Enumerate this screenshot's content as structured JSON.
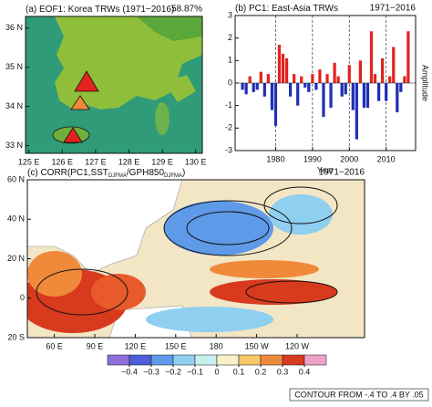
{
  "chart_data": [
    {
      "type": "map",
      "title": [
        "(a) EOF1: Korea TRWs (1971−2016)"
      ],
      "annotation": "58.87%",
      "xlim": [
        124.9,
        130.2
      ],
      "ylim": [
        32.8,
        36.3
      ],
      "xticks": [
        {
          "value": 125,
          "label": "125 E"
        },
        {
          "value": 126,
          "label": "126 E"
        },
        {
          "value": 127,
          "label": "127 E"
        },
        {
          "value": 128,
          "label": "128 E"
        },
        {
          "value": 129,
          "label": "129 E"
        },
        {
          "value": 130,
          "label": "130 E"
        }
      ],
      "yticks": [
        {
          "value": 33,
          "label": "33 N"
        },
        {
          "value": 34,
          "label": "34 N"
        },
        {
          "value": 35,
          "label": "35 N"
        },
        {
          "value": 36,
          "label": "36 N"
        }
      ]
    },
    {
      "type": "bar",
      "title": [
        "(b) PC1: East-Asia TRWs"
      ],
      "annotation": "1971−2016",
      "xlabel": "Year",
      "ylabel": "Amplitude",
      "x": [
        1971,
        1972,
        1973,
        1974,
        1975,
        1976,
        1977,
        1978,
        1979,
        1980,
        1981,
        1982,
        1983,
        1984,
        1985,
        1986,
        1987,
        1988,
        1989,
        1990,
        1991,
        1992,
        1993,
        1994,
        1995,
        1996,
        1997,
        1998,
        1999,
        2000,
        2001,
        2002,
        2003,
        2004,
        2005,
        2006,
        2007,
        2008,
        2009,
        2010,
        2011,
        2012,
        2013,
        2014,
        2015,
        2016
      ],
      "values": [
        -0.3,
        -0.5,
        0.3,
        -0.4,
        -0.3,
        0.5,
        -0.6,
        0.4,
        -1.2,
        -1.9,
        1.7,
        1.3,
        1.1,
        -0.6,
        0.4,
        -1.0,
        0.3,
        -0.2,
        -0.4,
        0.4,
        -0.3,
        0.6,
        -1.5,
        0.4,
        -1.1,
        0.9,
        0.3,
        -0.6,
        -0.5,
        0.8,
        -1.2,
        -2.5,
        1.0,
        -1.1,
        -1.1,
        2.3,
        0.4,
        -0.8,
        1.1,
        -0.8,
        0.3,
        1.6,
        -1.3,
        -0.4,
        0.3,
        2.3
      ],
      "positive_color": "#e3231e",
      "negative_color": "#1f2fb5",
      "xlim": [
        1969,
        2018
      ],
      "ylim": [
        -3,
        3
      ],
      "xticks": [
        1980,
        1990,
        2000,
        2010
      ],
      "yticks": [
        -3,
        -2,
        -1,
        0,
        1,
        2,
        3
      ],
      "grid": true
    },
    {
      "type": "map",
      "title": [
        "(c) CORR(PC1,SST",
        "DJFMA",
        "/GPH850",
        "DJFMA",
        ")"
      ],
      "annotation": "1971−2016",
      "xlim": [
        40,
        290
      ],
      "ylim": [
        -20,
        60
      ],
      "xticks": [
        {
          "value": 60,
          "label": "60 E"
        },
        {
          "value": 90,
          "label": "90 E"
        },
        {
          "value": 120,
          "label": "120 E"
        },
        {
          "value": 150,
          "label": "150 E"
        },
        180,
        {
          "value": 210,
          "label": "150 W"
        },
        {
          "value": 240,
          "label": "120 W"
        }
      ],
      "yticks": [
        {
          "value": -20,
          "label": "20 S"
        },
        0,
        {
          "value": 20,
          "label": "20 N"
        },
        {
          "value": 40,
          "label": "40 N"
        },
        {
          "value": 60,
          "label": "60 N"
        }
      ],
      "colorbar": {
        "colors": [
          "#8d6fd6",
          "#4c5fd8",
          "#5f9ae8",
          "#8fcff0",
          "#c6f0ee",
          "#f7f1c7",
          "#f7c86a",
          "#f08a3a",
          "#d83a1e",
          "#f0a0c8"
        ],
        "ticks": [
          {
            "value": -0.4,
            "label": "−0.4"
          },
          {
            "value": -0.3,
            "label": "−0.3"
          },
          {
            "value": -0.2,
            "label": "−0.2"
          },
          {
            "value": -0.1,
            "label": "−0.1"
          },
          0,
          0.1,
          0.2,
          0.3,
          0.4
        ]
      },
      "note": "CONTOUR FROM -.4 TO .4 BY .05"
    }
  ]
}
